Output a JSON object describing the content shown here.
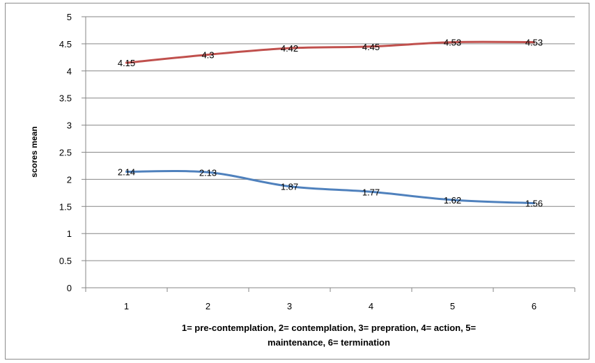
{
  "chart_data": {
    "type": "line",
    "categories": [
      "1",
      "2",
      "3",
      "4",
      "5",
      "6"
    ],
    "series": [
      {
        "values": [
          4.15,
          4.3,
          4.42,
          4.45,
          4.53,
          4.53
        ],
        "labels": [
          "4.15",
          "4.3",
          "4.42",
          "4.45",
          "4.53",
          "4.53"
        ],
        "color": "#c0504d"
      },
      {
        "values": [
          2.14,
          2.13,
          1.87,
          1.77,
          1.62,
          1.56
        ],
        "labels": [
          "2.14",
          "2.13",
          "1.87",
          "1.77",
          "1.62",
          "1.56"
        ],
        "color": "#4f81bd"
      }
    ],
    "ylabel": "scores mean",
    "xlabel_lines": [
      "1= pre-contemplation, 2= contemplation, 3= prepration, 4= action, 5=",
      "maintenance, 6= termination"
    ],
    "ylim": [
      0,
      5
    ],
    "yticks": [
      "0",
      "0.5",
      "1",
      "1.5",
      "2",
      "2.5",
      "3",
      "3.5",
      "4",
      "4.5",
      "5"
    ],
    "grid": true,
    "legend": "none"
  }
}
